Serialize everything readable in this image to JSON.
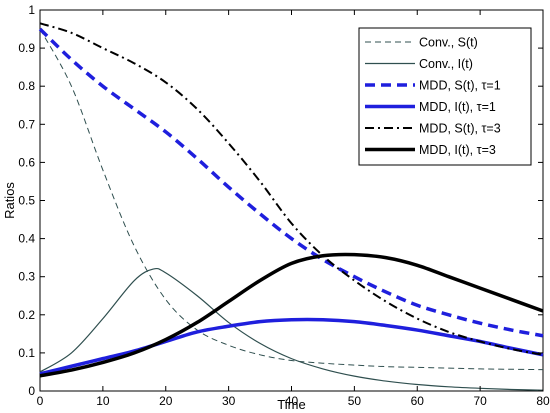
{
  "chart_data": {
    "type": "line",
    "title": "",
    "xlabel": "Time",
    "ylabel": "Ratios",
    "xlim": [
      0,
      80
    ],
    "ylim": [
      0,
      1
    ],
    "xticks": [
      0,
      10,
      20,
      30,
      40,
      50,
      60,
      70,
      80
    ],
    "yticks": [
      0,
      0.1,
      0.2,
      0.3,
      0.4,
      0.5,
      0.6,
      0.7,
      0.8,
      0.9,
      1
    ],
    "grid": false,
    "legend_position": "top-right",
    "series": [
      {
        "name": "Conv., S(t)",
        "color": "#2f4f4f",
        "style": "dashed-thin",
        "x": [
          0,
          5,
          10,
          15,
          20,
          25,
          30,
          35,
          40,
          45,
          50,
          55,
          60,
          65,
          70,
          75,
          80
        ],
        "y": [
          0.95,
          0.8,
          0.58,
          0.38,
          0.24,
          0.16,
          0.12,
          0.095,
          0.08,
          0.073,
          0.068,
          0.064,
          0.062,
          0.06,
          0.058,
          0.057,
          0.056
        ]
      },
      {
        "name": "Conv., I(t)",
        "color": "#2f4f4f",
        "style": "solid-thin",
        "x": [
          0,
          5,
          10,
          15,
          18,
          20,
          25,
          30,
          35,
          40,
          45,
          50,
          55,
          60,
          65,
          70,
          75,
          80
        ],
        "y": [
          0.05,
          0.1,
          0.19,
          0.29,
          0.32,
          0.31,
          0.25,
          0.18,
          0.125,
          0.085,
          0.058,
          0.039,
          0.026,
          0.017,
          0.011,
          0.007,
          0.004,
          0.002
        ]
      },
      {
        "name": "MDD, S(t), τ=1",
        "color": "#1f1fdd",
        "style": "dashed-thick",
        "x": [
          0,
          5,
          10,
          15,
          20,
          25,
          30,
          35,
          40,
          45,
          50,
          55,
          60,
          65,
          70,
          75,
          80
        ],
        "y": [
          0.95,
          0.87,
          0.8,
          0.74,
          0.68,
          0.61,
          0.535,
          0.465,
          0.4,
          0.345,
          0.3,
          0.26,
          0.225,
          0.2,
          0.178,
          0.16,
          0.145
        ]
      },
      {
        "name": "MDD, I(t), τ=1",
        "color": "#1f1fdd",
        "style": "solid-thick",
        "x": [
          0,
          5,
          10,
          15,
          20,
          25,
          30,
          35,
          40,
          45,
          50,
          55,
          60,
          65,
          70,
          75,
          80
        ],
        "y": [
          0.045,
          0.065,
          0.085,
          0.105,
          0.13,
          0.155,
          0.17,
          0.182,
          0.187,
          0.187,
          0.182,
          0.172,
          0.16,
          0.145,
          0.13,
          0.112,
          0.095
        ]
      },
      {
        "name": "MDD, S(t), τ=3",
        "color": "#000000",
        "style": "dashdot",
        "x": [
          0,
          5,
          10,
          15,
          20,
          25,
          30,
          35,
          40,
          45,
          50,
          55,
          60,
          65,
          70,
          75,
          80
        ],
        "y": [
          0.965,
          0.94,
          0.9,
          0.86,
          0.81,
          0.74,
          0.65,
          0.55,
          0.44,
          0.355,
          0.29,
          0.235,
          0.19,
          0.155,
          0.13,
          0.11,
          0.095
        ]
      },
      {
        "name": "MDD, I(t), τ=3",
        "color": "#000000",
        "style": "solid-thick",
        "x": [
          0,
          5,
          10,
          15,
          20,
          25,
          30,
          35,
          40,
          45,
          50,
          55,
          60,
          65,
          70,
          75,
          80
        ],
        "y": [
          0.04,
          0.055,
          0.075,
          0.1,
          0.135,
          0.18,
          0.235,
          0.29,
          0.335,
          0.355,
          0.358,
          0.35,
          0.33,
          0.3,
          0.27,
          0.24,
          0.21
        ]
      }
    ]
  }
}
